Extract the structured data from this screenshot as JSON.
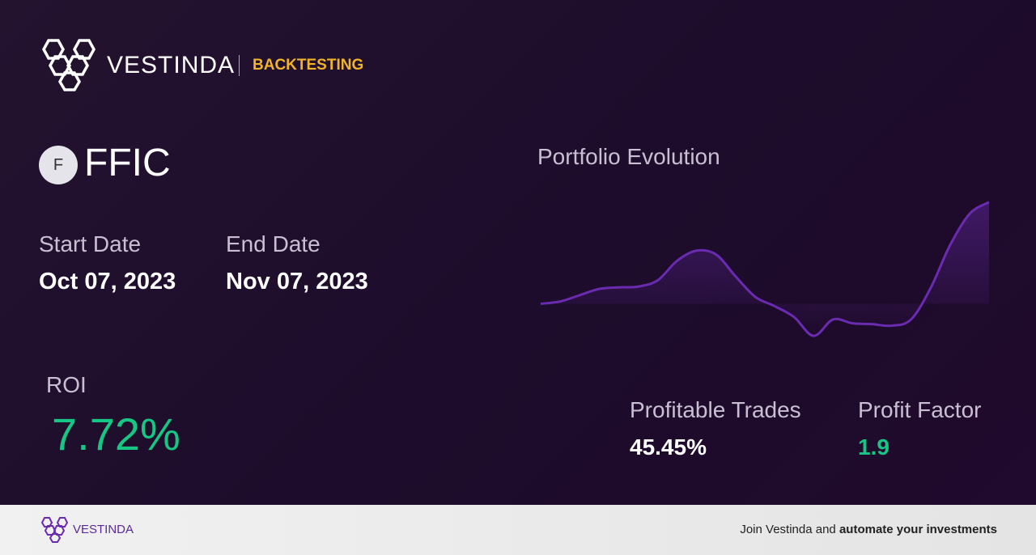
{
  "header": {
    "brand": "VESTINDA",
    "section": "BACKTESTING"
  },
  "asset": {
    "icon_letter": "F",
    "ticker": "FFIC"
  },
  "dates": {
    "start_label": "Start Date",
    "start_value": "Oct 07, 2023",
    "end_label": "End Date",
    "end_value": "Nov 07, 2023"
  },
  "roi": {
    "label": "ROI",
    "value": "7.72%"
  },
  "chart_data": {
    "type": "line",
    "title": "Portfolio Evolution",
    "color": "#6a2bb0",
    "values": [
      45,
      48,
      56,
      64,
      66,
      67,
      75,
      100,
      113,
      108,
      80,
      54,
      42,
      28,
      4,
      25,
      20,
      19,
      17,
      25,
      65,
      120,
      160,
      175
    ],
    "ylim": [
      0,
      180
    ]
  },
  "stats": {
    "profitable_label": "Profitable Trades",
    "profitable_value": "45.45%",
    "factor_label": "Profit Factor",
    "factor_value": "1.9"
  },
  "footer": {
    "brand": "VESTINDA",
    "cta_prefix": "Join Vestinda and",
    "cta_bold": "automate your investments"
  }
}
